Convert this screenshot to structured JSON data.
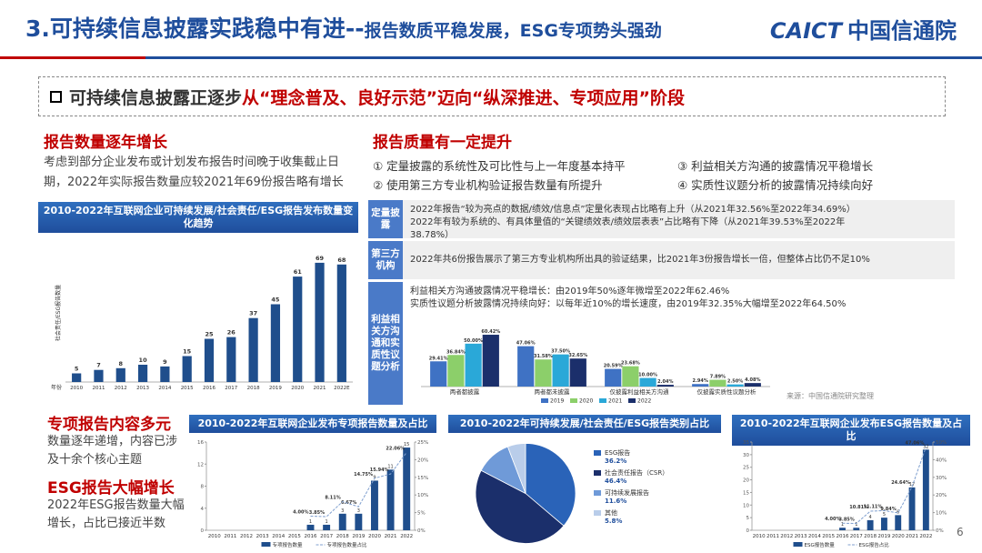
{
  "header": {
    "title": "3.可持续信息披露实践稳中有进--",
    "subtitle": "报告数质平稳发展，ESG专项势头强劲",
    "logo_en": "CAICT",
    "logo_cn": "中国信通院"
  },
  "banner": {
    "lead": "可持续信息披露正逐步",
    "highlight": "从“理念普及、良好示范”迈向“纵深推进、专项应用”阶段"
  },
  "left": {
    "heading": "报告数量逐年增长",
    "lines": [
      "考虑到部分企业发布或计划发布报告时间晚于收集截止日",
      "期，2022年实际报告数量应较2021年69份报告略有增长"
    ]
  },
  "quality": {
    "heading": "报告质量有一定提升",
    "points": [
      "① 定量披露的系统性及可比性与上一年度基本持平",
      "③ 利益相关方沟通的披露情况平稳增长",
      "② 使用第三方专业机构验证报告数量有所提升",
      "④ 实质性议题分析的披露情况持续向好"
    ],
    "rows": [
      {
        "label": "定量披露",
        "lines": [
          "2022年报告“较为亮点的数据/绩效/信息点”定量化表现占比略有上升（从2021年32.56%至2022年34.69%）",
          "2022年有较为系统的、有具体量值的“关键绩效表/绩效层表表”占比略有下降（从2021年39.53%至2022年",
          "38.78%）"
        ]
      },
      {
        "label": "第三方机构",
        "lines": [
          "2022年共6份报告展示了第三方专业机构所出具的验证结果，比2021年3份报告增长一倍，但整体占比仍不足10%"
        ]
      },
      {
        "label": "利益相关方沟通和实质性议题分析",
        "lines": [
          "利益相关方沟通披露情况平稳增长：由2019年50%逐年微增至2022年62.46%",
          "实质性议题分析披露情况持续向好：以每年近10%的增长速度，由2019年32.35%大幅增至2022年64.50%"
        ]
      }
    ],
    "source": "来源：中国信通院研究整理"
  },
  "notes": [
    {
      "heading": "专项报告内容多元",
      "lines": [
        "数量逐年递增，内容已涉",
        "及十余个核心主题"
      ]
    },
    {
      "heading": "ESG报告大幅增长",
      "lines": [
        "2022年ESG报告数量大幅",
        "增长，占比已接近半数"
      ]
    }
  ],
  "page_number": "6",
  "chart_data": [
    {
      "type": "bar",
      "title": "2010-2022年互联网企业可持续发展/社会责任/ESG报告发布数量变化趋势",
      "x_label": "年份",
      "y_label": "社会责任/ESG报告数量",
      "categories": [
        "2010",
        "2011",
        "2012",
        "2013",
        "2014",
        "2015",
        "2016",
        "2017",
        "2018",
        "2019",
        "2020",
        "2021",
        "2022E"
      ],
      "values": [
        5,
        7,
        8,
        10,
        9,
        15,
        25,
        26,
        37,
        45,
        61,
        69,
        68
      ],
      "color": "#1f4e8c",
      "ylim": [
        0,
        80
      ]
    },
    {
      "type": "grouped_bar",
      "categories": [
        "两者都披露",
        "两者都未披露",
        "仅披露利益相关方沟通",
        "仅披露实质性议题分析"
      ],
      "series": [
        {
          "name": "2019",
          "color": "#3f72c4",
          "values": [
            29.41,
            47.06,
            20.59,
            2.94
          ],
          "value_labels": [
            "29.41%",
            "47.06%",
            "20.59%",
            "2.94%"
          ]
        },
        {
          "name": "2020",
          "color": "#8ccf6a",
          "values": [
            36.84,
            31.58,
            23.68,
            7.89
          ],
          "value_labels": [
            "36.84%",
            "31.58%",
            "23.68%",
            "7.89%"
          ]
        },
        {
          "name": "2021",
          "color": "#2aa8d8",
          "values": [
            50.0,
            37.5,
            10.0,
            2.5
          ],
          "value_labels": [
            "50.00%",
            "37.50%",
            "10.00%",
            "2.50%"
          ]
        },
        {
          "name": "2022",
          "color": "#1b2f6b",
          "values": [
            60.42,
            32.65,
            2.04,
            4.08
          ],
          "value_labels": [
            "60.42%",
            "32.65%",
            "2.04%",
            "4.08%"
          ]
        }
      ],
      "ylim": [
        0,
        70
      ]
    },
    {
      "type": "combo",
      "title": "2010-2022年互联网企业发布专项报告数量及占比",
      "categories": [
        "2010",
        "2011",
        "2012",
        "2013",
        "2014",
        "2015",
        "2016",
        "2017",
        "2018",
        "2019",
        "2020",
        "2021",
        "2022"
      ],
      "series": [
        {
          "name": "专项报告数量",
          "color": "#1f4e8c",
          "values": [
            0,
            0,
            0,
            0,
            0,
            0,
            1,
            1,
            3,
            3,
            9,
            11,
            15
          ]
        },
        {
          "name": "专项报告数量占比",
          "color": "#7f9fcf",
          "axis": "y2",
          "values": [
            null,
            null,
            null,
            null,
            null,
            null,
            4.0,
            3.85,
            8.11,
            6.67,
            14.75,
            15.94,
            22.06
          ],
          "value_labels": [
            null,
            null,
            null,
            null,
            null,
            null,
            "4.00%",
            "3.85%",
            "8.11%",
            "6.67%",
            "14.75%",
            "15.94%",
            "22.06%"
          ]
        }
      ],
      "ylim": [
        0,
        16
      ],
      "yticks": [
        0,
        4,
        8,
        12,
        16
      ],
      "y2lim": [
        0,
        25
      ],
      "y2ticks": [
        {
          "value": 0,
          "label": "0%"
        },
        {
          "value": 5,
          "label": "5%"
        },
        {
          "value": 10,
          "label": "10%"
        },
        {
          "value": 15,
          "label": "15%"
        },
        {
          "value": 20,
          "label": "20%"
        },
        {
          "value": 25,
          "label": "25%"
        }
      ]
    },
    {
      "type": "pie",
      "title": "2010-2022年可持续发展/社会责任/ESG报告类别占比",
      "categories": [
        "ESG报告",
        "社会责任报告（CSR）",
        "可持续发展报告",
        "其他"
      ],
      "values": [
        36.2,
        46.4,
        11.6,
        5.8
      ],
      "value_labels": [
        "36.2%",
        "46.4%",
        "11.6%",
        "5.8%"
      ],
      "colors": [
        "#2a63b8",
        "#1b2f6b",
        "#6f9ad8",
        "#b9cdea"
      ]
    },
    {
      "type": "combo",
      "title": "2010-2022年互联网企业发布ESG报告数量及占比",
      "categories": [
        "2010",
        "2011",
        "2012",
        "2013",
        "2014",
        "2015",
        "2016",
        "2017",
        "2018",
        "2019",
        "2020",
        "2021",
        "2022"
      ],
      "series": [
        {
          "name": "ESG报告数量",
          "color": "#1f4e8c",
          "values": [
            0,
            0,
            0,
            0,
            0,
            0,
            1,
            1,
            4,
            5,
            6,
            17,
            32
          ]
        },
        {
          "name": "ESG报告占比",
          "color": "#7f9fcf",
          "axis": "y2",
          "values": [
            null,
            null,
            null,
            null,
            null,
            null,
            4.0,
            3.85,
            10.81,
            11.11,
            9.84,
            24.64,
            47.06
          ],
          "value_labels": [
            null,
            null,
            null,
            null,
            null,
            null,
            "4.00%",
            "3.85%",
            "10.81%",
            "11.11%",
            "9.84%",
            "24.64%",
            "47.06%"
          ]
        }
      ],
      "ylim": [
        0,
        35
      ],
      "yticks": [
        0,
        5,
        10,
        15,
        20,
        25,
        30,
        35
      ],
      "y2lim": [
        0,
        50
      ],
      "y2ticks": [
        {
          "value": 0,
          "label": "0%"
        },
        {
          "value": 10,
          "label": "10%"
        },
        {
          "value": 20,
          "label": "20%"
        },
        {
          "value": 30,
          "label": "30%"
        },
        {
          "value": 40,
          "label": "40%"
        },
        {
          "value": 50,
          "label": "50%"
        }
      ]
    }
  ]
}
